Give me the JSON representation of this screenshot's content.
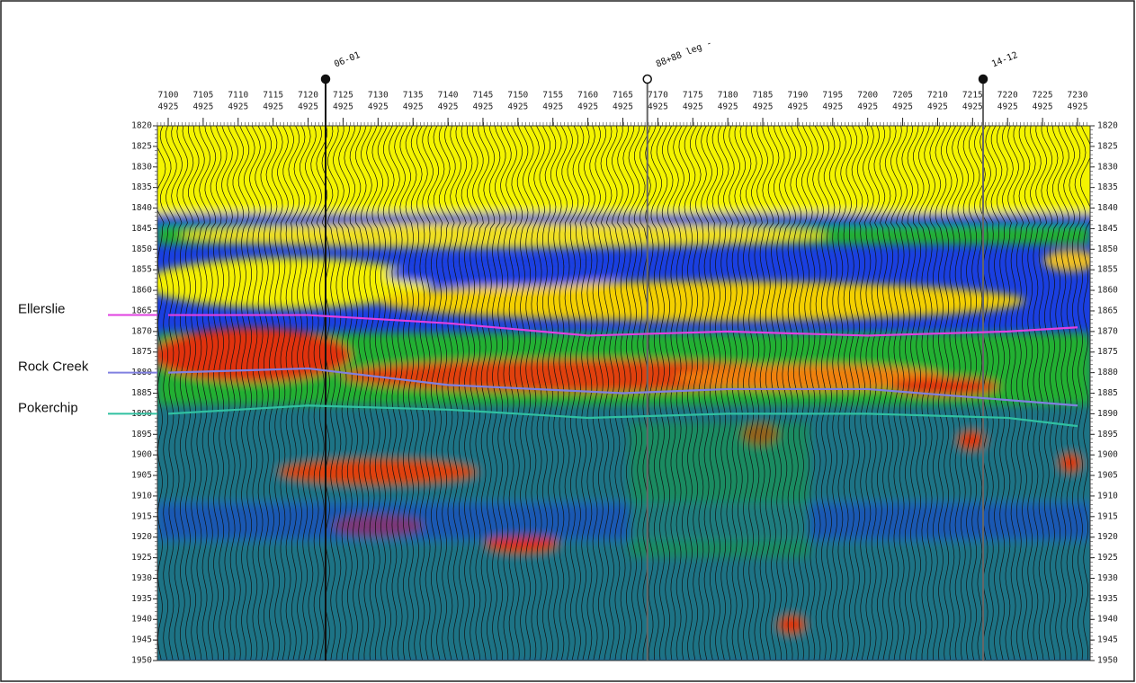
{
  "section": {
    "inlines": [
      7100,
      7105,
      7110,
      7115,
      7120,
      7125,
      7130,
      7135,
      7140,
      7145,
      7150,
      7155,
      7160,
      7165,
      7170,
      7175,
      7180,
      7185,
      7190,
      7195,
      7200,
      7205,
      7210,
      7215,
      7220,
      7225,
      7230
    ],
    "crosslines": [
      "4925",
      "4925",
      "4925",
      "4925",
      "4925",
      "4925",
      "4925",
      "4925",
      "4925",
      "4925",
      "4925",
      "4925",
      "4925",
      "4925",
      "4925",
      "4925",
      "4925",
      "4925",
      "4925",
      "4925",
      "4925",
      "4925",
      "4925",
      "4925",
      "4925",
      "4925",
      "4925"
    ],
    "xlim": [
      7098,
      7234
    ],
    "ylim": [
      1820,
      1950
    ],
    "times": [
      1820,
      1825,
      1830,
      1835,
      1840,
      1845,
      1850,
      1855,
      1860,
      1865,
      1870,
      1875,
      1880,
      1885,
      1890,
      1895,
      1900,
      1905,
      1910,
      1915,
      1920,
      1925,
      1930,
      1935,
      1940,
      1945,
      1950
    ],
    "wells": [
      {
        "label": "06-01",
        "inline": 7122.5
      },
      {
        "label": "88+88 leg -",
        "inline": 7168.5
      },
      {
        "label": "14-12",
        "inline": 7216.5
      }
    ],
    "horizons": [
      {
        "name": "Ellerslie",
        "color": "#e040e0",
        "x": [
          7100,
          7120,
          7140,
          7160,
          7180,
          7200,
          7220,
          7230
        ],
        "y": [
          1866,
          1866,
          1868,
          1871,
          1870,
          1871,
          1870,
          1869
        ]
      },
      {
        "name": "Rock Creek",
        "color": "#8080e0",
        "x": [
          7100,
          7120,
          7140,
          7165,
          7180,
          7200,
          7215,
          7230
        ],
        "y": [
          1880,
          1879,
          1883,
          1885,
          1884,
          1884,
          1886,
          1888
        ]
      },
      {
        "name": "Pokerchip",
        "color": "#30c0a0",
        "x": [
          7100,
          7120,
          7140,
          7160,
          7180,
          7200,
          7220,
          7230
        ],
        "y": [
          1890,
          1888,
          1889,
          1891,
          1890,
          1890,
          1891,
          1893
        ]
      }
    ]
  }
}
